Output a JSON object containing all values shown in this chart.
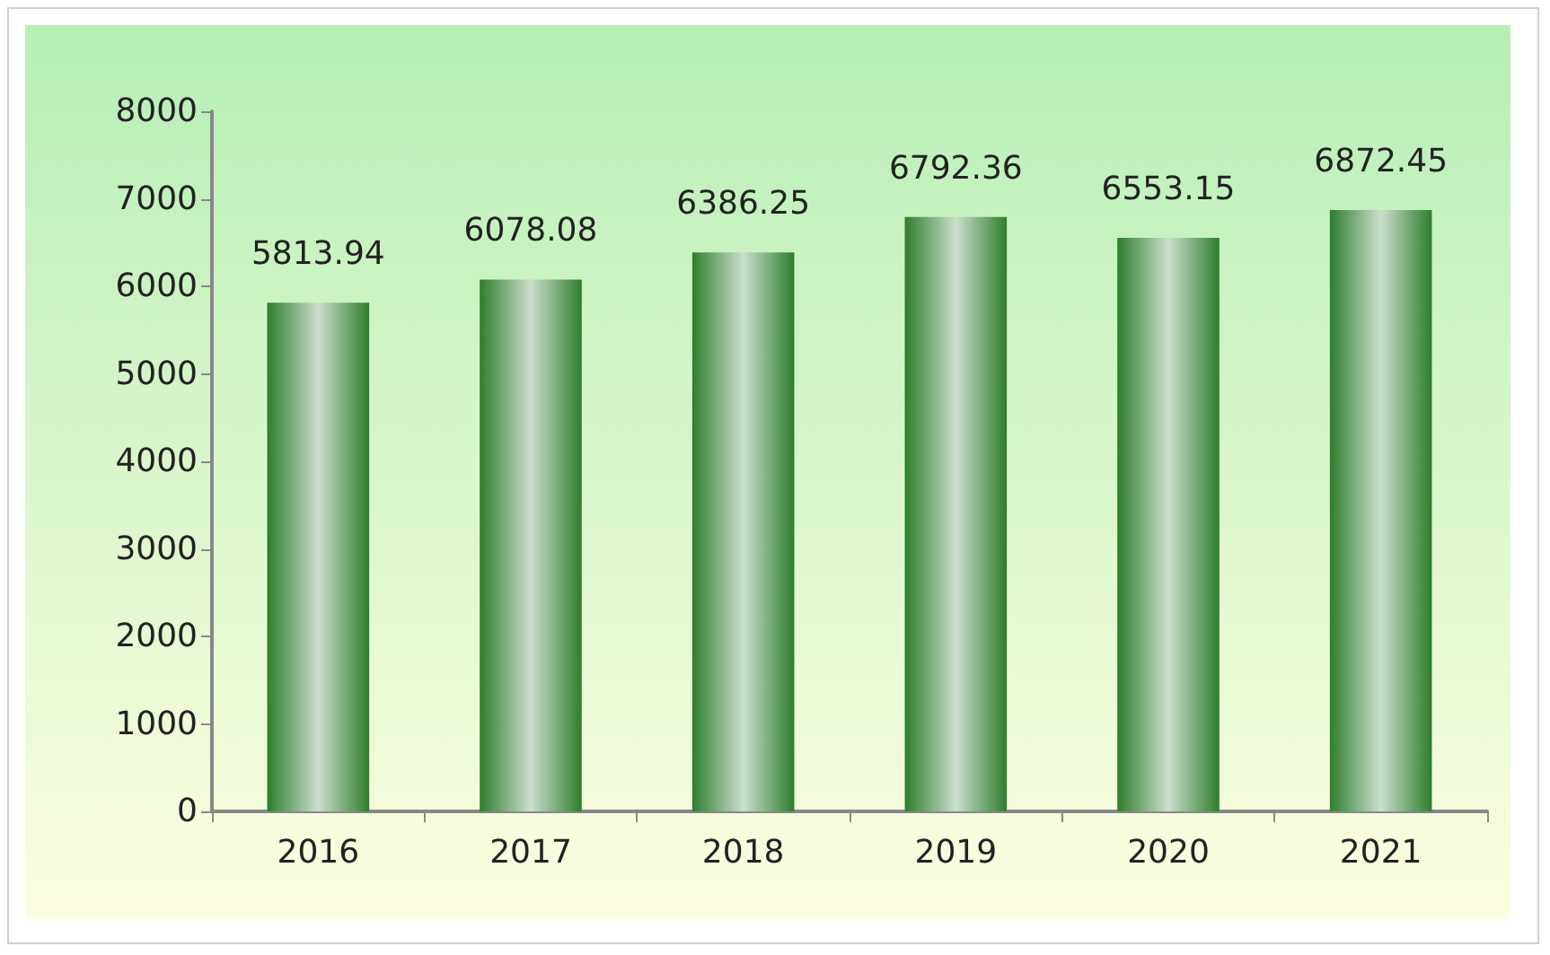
{
  "chart_data": {
    "type": "bar",
    "categories": [
      "2016",
      "2017",
      "2018",
      "2019",
      "2020",
      "2021"
    ],
    "values": [
      5813.94,
      6078.08,
      6386.25,
      6792.36,
      6553.15,
      6872.45
    ],
    "color": "#2e7d2e",
    "ylim": [
      0,
      8000
    ],
    "yticks": [
      0,
      1000,
      2000,
      3000,
      4000,
      5000,
      6000,
      7000,
      8000
    ],
    "grid": false,
    "data_labels": true
  }
}
